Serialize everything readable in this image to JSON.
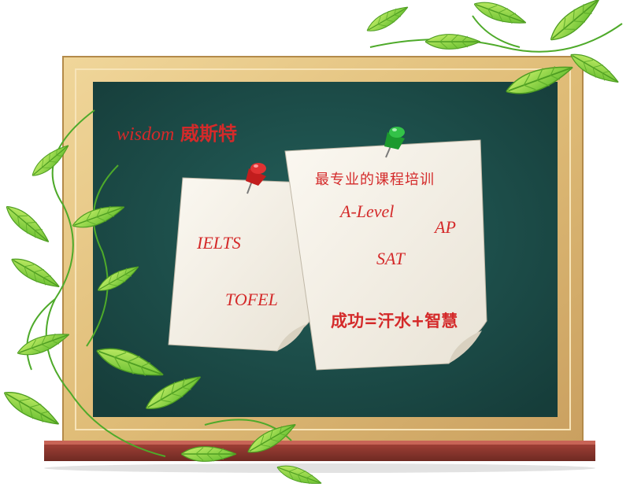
{
  "board": {
    "brand_latin": "wisdom",
    "brand_cjk": "威斯特",
    "frame_color": "#e2c07e",
    "board_color": "#1d4b48",
    "text_color": "#d42a2a"
  },
  "note_left": {
    "items": [
      "IELTS",
      "TOFEL"
    ],
    "pin": "red-pushpin-icon"
  },
  "note_right": {
    "heading": "最专业的课程培训",
    "items": [
      "A-Level",
      "AP",
      "SAT"
    ],
    "slogan": "成功=汗水+智慧",
    "pin": "green-pushpin-icon"
  }
}
